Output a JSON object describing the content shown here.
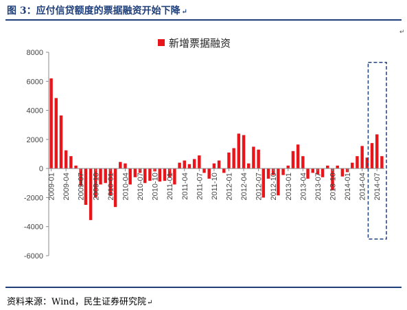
{
  "header": {
    "title": "图 3：应付信贷额度的票据融资开始下降",
    "mark": "↵"
  },
  "footer": {
    "source": "资料来源：Wind，民生证券研究院",
    "mark": "↵"
  },
  "side_mark": "↵",
  "colors": {
    "bar": "#e8161b",
    "axis": "#8a8a8a",
    "highlight": "#1f3f7a",
    "rule": "#1f3f7a"
  },
  "chart_data": {
    "type": "bar",
    "title": "",
    "xlabel": "",
    "ylabel": "",
    "ylim": [
      -6000,
      8000
    ],
    "yticks": [
      8000,
      6000,
      4000,
      2000,
      0,
      -2000,
      -4000,
      -6000
    ],
    "grid": false,
    "legend_position": "top-center",
    "x_tick_labels": [
      {
        "index": 0,
        "label": "2009-01"
      },
      {
        "index": 3,
        "label": "2009-04"
      },
      {
        "index": 6,
        "label": "2009-07"
      },
      {
        "index": 9,
        "label": "2009-10"
      },
      {
        "index": 12,
        "label": "2010-01"
      },
      {
        "index": 15,
        "label": "2010-04"
      },
      {
        "index": 18,
        "label": "2010-07"
      },
      {
        "index": 21,
        "label": "2010-10"
      },
      {
        "index": 24,
        "label": "2011-01"
      },
      {
        "index": 27,
        "label": "2011-04"
      },
      {
        "index": 30,
        "label": "2011-07"
      },
      {
        "index": 33,
        "label": "2011-10"
      },
      {
        "index": 36,
        "label": "2012-01"
      },
      {
        "index": 39,
        "label": "2012-04"
      },
      {
        "index": 42,
        "label": "2012-07"
      },
      {
        "index": 45,
        "label": "2012-10"
      },
      {
        "index": 48,
        "label": "2013-01"
      },
      {
        "index": 51,
        "label": "2013-04"
      },
      {
        "index": 54,
        "label": "2013-07"
      },
      {
        "index": 57,
        "label": "2013-10"
      },
      {
        "index": 60,
        "label": "2014-01"
      },
      {
        "index": 63,
        "label": "2014-04"
      },
      {
        "index": 66,
        "label": "2014-07"
      }
    ],
    "series": [
      {
        "name": "新增票据融资",
        "values": [
          6200,
          4850,
          3650,
          1250,
          850,
          200,
          -1200,
          -2500,
          -3550,
          -2000,
          -1100,
          -1000,
          -1850,
          -2650,
          450,
          350,
          -1100,
          -600,
          -300,
          -1000,
          -850,
          -200,
          -900,
          -850,
          -600,
          -1100,
          400,
          550,
          300,
          650,
          900,
          -300,
          -700,
          350,
          550,
          -300,
          1100,
          1400,
          2400,
          2300,
          350,
          1500,
          1300,
          -2000,
          -700,
          -450,
          -1850,
          -450,
          200,
          1200,
          1650,
          850,
          -700,
          -300,
          -400,
          -600,
          200,
          -1500,
          200,
          -550,
          -250,
          400,
          850,
          1550,
          750,
          1750,
          2350,
          850
        ]
      }
    ],
    "highlight_range": {
      "from_index": 65,
      "to_index": 67,
      "y_top": 7300,
      "y_bottom": -4850
    }
  }
}
